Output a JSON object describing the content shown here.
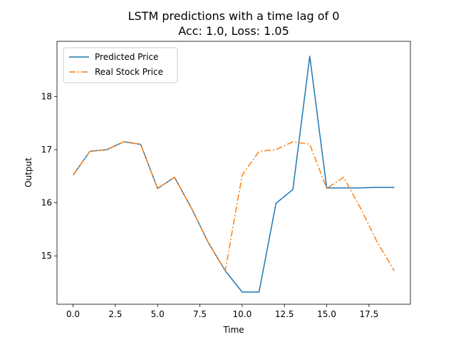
{
  "chart_data": {
    "type": "line",
    "title": "LSTM predictions with a time lag of 0",
    "subtitle": "Acc: 1.0, Loss: 1.05",
    "xlabel": "Time",
    "ylabel": "Output",
    "xlim": [
      -0.95,
      19.95
    ],
    "ylim": [
      14.09,
      19.04
    ],
    "xticks": [
      0.0,
      2.5,
      5.0,
      7.5,
      10.0,
      12.5,
      15.0,
      17.5
    ],
    "xtick_labels": [
      "0.0",
      "2.5",
      "5.0",
      "7.5",
      "10.0",
      "12.5",
      "15.0",
      "17.5"
    ],
    "yticks": [
      15,
      16,
      17,
      18
    ],
    "ytick_labels": [
      "15",
      "16",
      "17",
      "18"
    ],
    "grid": false,
    "legend_position": "top-left",
    "x": [
      0,
      1,
      2,
      3,
      4,
      5,
      6,
      7,
      8,
      9,
      10,
      11,
      12,
      13,
      14,
      15,
      16,
      17,
      18,
      19
    ],
    "series": [
      {
        "name": "Predicted Price",
        "color": "#1f77b4",
        "style": "solid",
        "values": [
          16.52,
          16.97,
          17.0,
          17.15,
          17.1,
          16.27,
          16.48,
          15.9,
          15.25,
          14.72,
          14.32,
          14.32,
          15.99,
          16.25,
          18.76,
          16.28,
          16.28,
          16.28,
          16.29,
          16.29
        ]
      },
      {
        "name": "Real Stock Price",
        "color": "#ff7f0e",
        "style": "dashdot",
        "values": [
          16.52,
          16.97,
          17.0,
          17.15,
          17.1,
          16.27,
          16.48,
          15.9,
          15.25,
          14.72,
          16.52,
          16.97,
          17.0,
          17.15,
          17.1,
          16.27,
          16.48,
          15.9,
          15.25,
          14.72
        ]
      }
    ]
  }
}
